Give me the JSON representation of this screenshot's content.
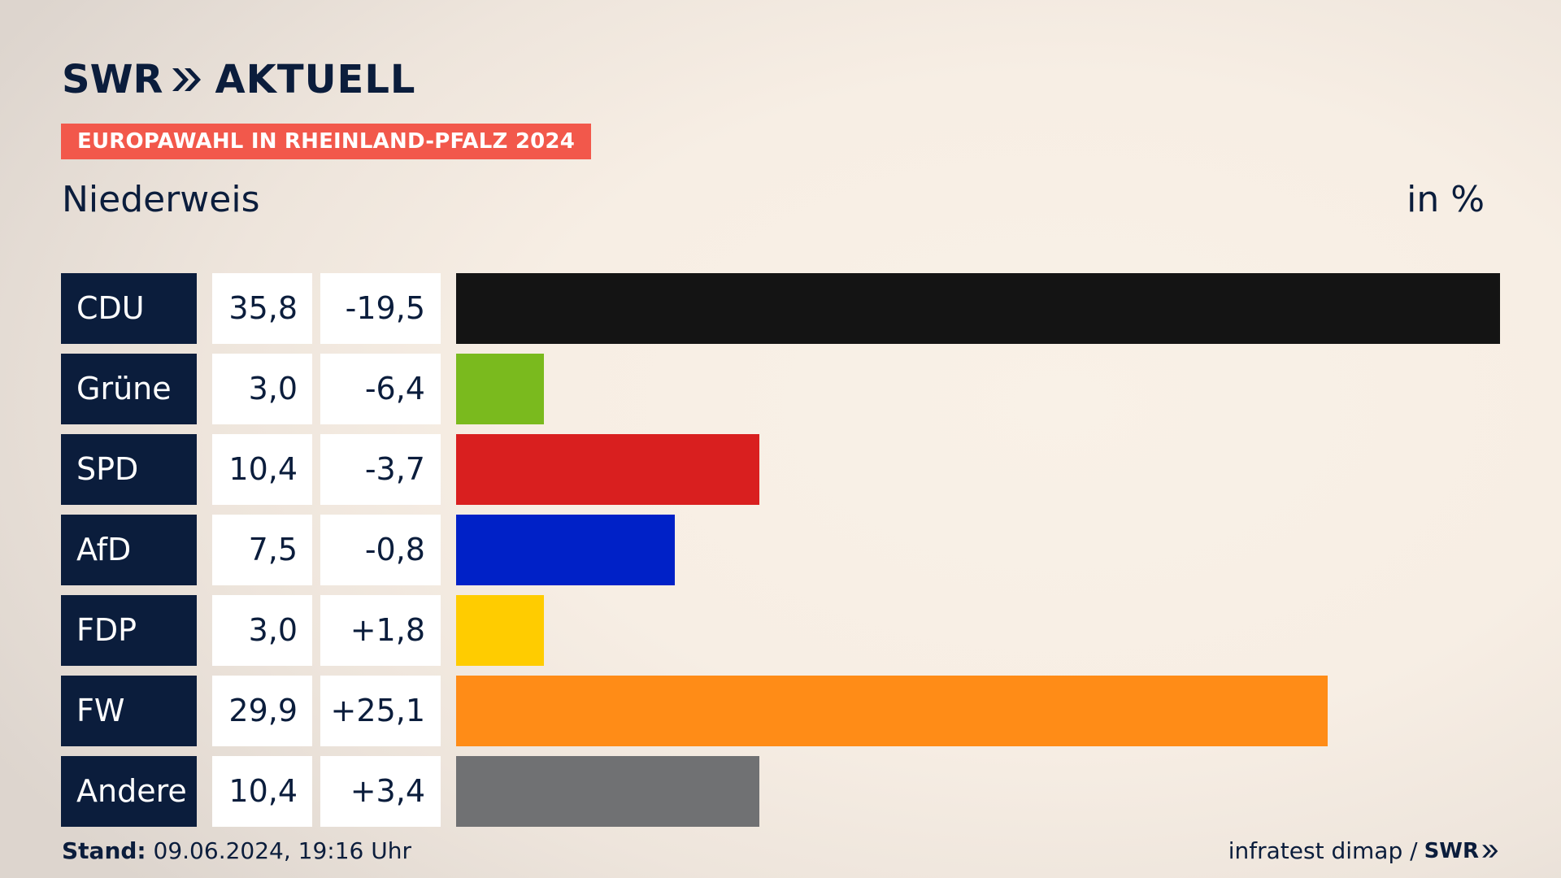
{
  "brand": {
    "logo_text": "SWR",
    "section_text": "AKTUELL",
    "color": "#0b1d3c",
    "accent": "#f2584b"
  },
  "header": {
    "kicker": "EUROPAWAHL IN RHEINLAND-PFALZ 2024",
    "place": "Niederweis",
    "unit": "in %"
  },
  "chart_data": {
    "type": "bar",
    "orientation": "horizontal",
    "categories": [
      "CDU",
      "Grüne",
      "SPD",
      "AfD",
      "FDP",
      "FW",
      "Andere"
    ],
    "values": [
      35.8,
      3.0,
      10.4,
      7.5,
      3.0,
      29.9,
      10.4
    ],
    "value_labels": [
      "35,8",
      "3,0",
      "10,4",
      "7,5",
      "3,0",
      "29,9",
      "10,4"
    ],
    "diffs": [
      -19.5,
      -6.4,
      -3.7,
      -0.8,
      1.8,
      25.1,
      3.4
    ],
    "diff_labels": [
      "-19,5",
      "-6,4",
      "-3,7",
      "-0,8",
      "+1,8",
      "+25,1",
      "+3,4"
    ],
    "colors": [
      "#141414",
      "#7aba1e",
      "#d91f1f",
      "#0021c7",
      "#ffcc00",
      "#ff8c17",
      "#707173"
    ],
    "xlim": [
      0,
      35.8
    ],
    "unit": "in %"
  },
  "footer": {
    "stand_label": "Stand:",
    "stand_value": "09.06.2024, 19:16 Uhr",
    "source": "infratest dimap /",
    "source_logo": "SWR"
  }
}
